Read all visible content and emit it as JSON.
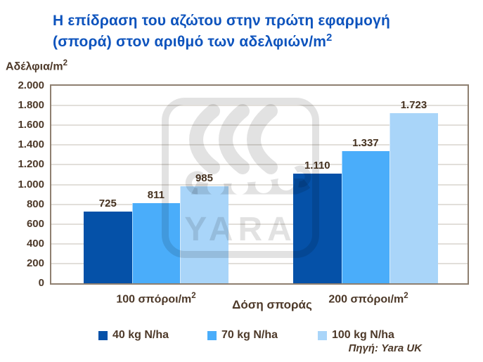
{
  "title": {
    "line1": "Η επίδραση του αζώτου στην πρώτη εφαρμογή",
    "line2": "(σπορά) στον αριθμό των αδελφιών/m²"
  },
  "y_axis_label": "Αδέλφια/m²",
  "source": "Πηγή: Yara UK",
  "watermark_text": "YARA",
  "colors": {
    "title_blue": "#0d53bd",
    "text_brown": "#4d3929",
    "plot_border": "#8e7f70",
    "gridline": "#e2dfda",
    "bar_dark_blue": "#0551a8",
    "bar_medium_blue": "#4aadfa",
    "bar_light_blue": "#a9d5f9"
  },
  "chart_data": {
    "type": "bar",
    "categories": [
      "100 σπόροι/m²",
      "200 σπόροι/m²"
    ],
    "series": [
      {
        "name": "40 kg N/ha",
        "color": "#0551a8",
        "values": [
          725,
          1110
        ],
        "labels": [
          "725",
          "1.110"
        ]
      },
      {
        "name": "70 kg N/ha",
        "color": "#4aadfa",
        "values": [
          811,
          1337
        ],
        "labels": [
          "811",
          "1.337"
        ]
      },
      {
        "name": "100 kg N/ha",
        "color": "#a9d5f9",
        "values": [
          985,
          1723
        ],
        "labels": [
          "985",
          "1.723"
        ]
      }
    ],
    "xlabel": "Δόση σποράς",
    "ylabel": "Αδέλφια/m²",
    "ylim": [
      0,
      2000
    ],
    "ytick_step": 200,
    "ytick_labels": [
      "0",
      "200",
      "400",
      "600",
      "800",
      "1.000",
      "1.200",
      "1.400",
      "1.600",
      "1.800",
      "2.000"
    ],
    "grid": true,
    "legend_position": "bottom"
  }
}
